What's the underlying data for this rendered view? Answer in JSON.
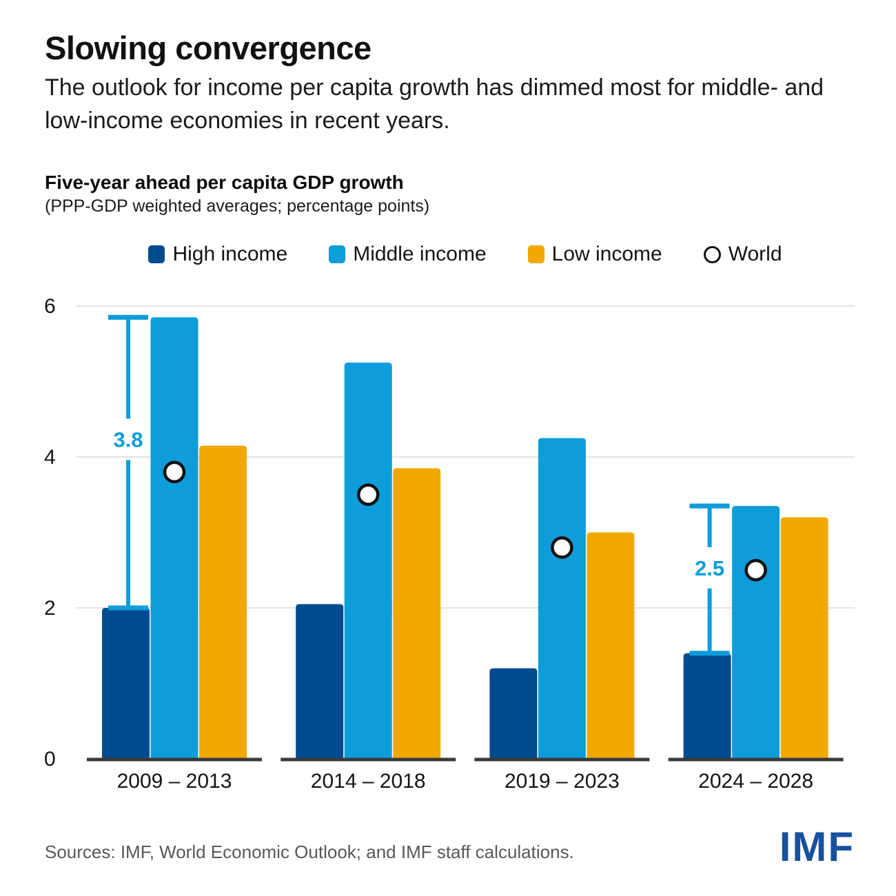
{
  "header": {
    "title": "Slowing convergence",
    "subtitle": "The outlook for income per capita growth has dimmed most for middle- and low-income economies in recent years."
  },
  "chart": {
    "title": "Five-year ahead per capita GDP growth",
    "note": "(PPP-GDP weighted averages; percentage points)"
  },
  "legend": {
    "items": [
      {
        "label": "High income",
        "marker": "square",
        "color": "#004B8F"
      },
      {
        "label": "Middle income",
        "marker": "square",
        "color": "#0D9DDA"
      },
      {
        "label": "Low income",
        "marker": "square",
        "color": "#F1A800"
      },
      {
        "label": "World",
        "marker": "circle",
        "color": "#FFFFFF",
        "stroke": "#111111"
      }
    ]
  },
  "chart_data": {
    "type": "bar",
    "title": "Five-year ahead per capita GDP growth",
    "subtitle": "(PPP-GDP weighted averages; percentage points)",
    "categories": [
      "2009 – 2013",
      "2014 – 2018",
      "2019 – 2023",
      "2024 – 2028"
    ],
    "series": [
      {
        "name": "High income",
        "type": "bar",
        "color": "#004B8F",
        "values": [
          2.0,
          2.05,
          1.2,
          1.4
        ]
      },
      {
        "name": "Middle income",
        "type": "bar",
        "color": "#0D9DDA",
        "values": [
          5.85,
          5.25,
          4.25,
          3.35
        ]
      },
      {
        "name": "Low income",
        "type": "bar",
        "color": "#F1A800",
        "values": [
          4.15,
          3.85,
          3.0,
          3.2
        ]
      },
      {
        "name": "World",
        "type": "scatter",
        "color": "#FFFFFF",
        "marker_stroke": "#111111",
        "values": [
          3.8,
          3.5,
          2.8,
          2.5
        ]
      }
    ],
    "annotations": [
      {
        "category_index": 0,
        "label": "3.8",
        "from_value": 2.0,
        "to_value": 5.85
      },
      {
        "category_index": 3,
        "label": "2.5",
        "from_value": 1.4,
        "to_value": 3.35
      }
    ],
    "annotation_color": "#0D9DDA",
    "ylim": [
      0,
      6
    ],
    "yticks": [
      0,
      2,
      4,
      6
    ],
    "grid": true,
    "gridline_color": "#E3E3E3",
    "axis_color": "#3A3A3A",
    "legend_position": "top"
  },
  "footer": {
    "source": "Sources: IMF, World Economic Outlook; and IMF staff calculations.",
    "logo": "IMF"
  }
}
